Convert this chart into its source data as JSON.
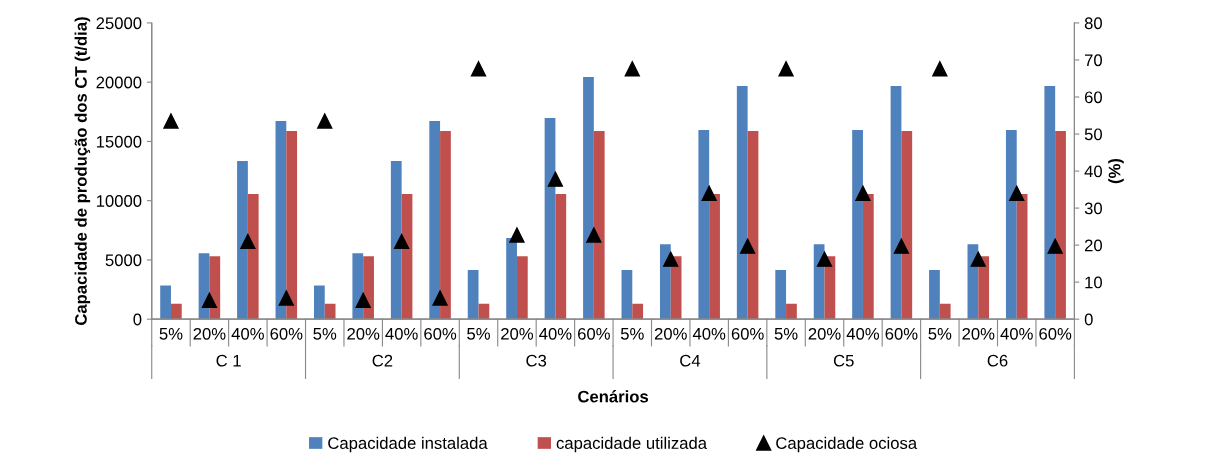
{
  "chart_data": {
    "type": "bar",
    "xlabel": "Cenários",
    "ylabel": "Capacidade de produção dos CT (t/dia)",
    "y2label": "(%)",
    "categories": [
      "5%",
      "20%",
      "40%",
      "60%",
      "5%",
      "20%",
      "40%",
      "60%",
      "5%",
      "20%",
      "40%",
      "60%",
      "5%",
      "20%",
      "40%",
      "60%",
      "5%",
      "20%",
      "40%",
      "60%",
      "5%",
      "20%",
      "40%",
      "60%"
    ],
    "annotations": [
      "C 1",
      "C2",
      "C3",
      "C4",
      "C5",
      "C6"
    ],
    "series": [
      {
        "name": "Capacidade instalada",
        "color": "#4f81bd",
        "values": [
          2850,
          5570,
          13340,
          16720,
          2850,
          5570,
          13340,
          16720,
          4140,
          6840,
          16980,
          20440,
          4140,
          6330,
          15960,
          19680,
          4140,
          6330,
          15960,
          19680,
          4140,
          6330,
          15960,
          19680
        ]
      },
      {
        "name": "capacidade utilizada",
        "color": "#c0504d",
        "values": [
          1300,
          5300,
          10560,
          15880,
          1300,
          5300,
          10560,
          15880,
          1300,
          5300,
          10560,
          15880,
          1300,
          5300,
          10560,
          15880,
          1300,
          5300,
          10560,
          15880,
          1300,
          5300,
          10560,
          15880
        ]
      },
      {
        "name": "Capacidade ociosa",
        "color": "#000000",
        "type": "scatter",
        "axis": "y2",
        "marker": "triangle",
        "values": [
          53.5,
          5.1,
          21,
          5.7,
          53.5,
          5.1,
          21,
          5.7,
          67.6,
          22.7,
          37.8,
          22.7,
          67.6,
          16.2,
          34,
          19.7,
          67.6,
          16.2,
          34,
          19.7,
          67.6,
          16.2,
          34,
          19.7
        ]
      }
    ],
    "ylim": [
      0,
      25000
    ],
    "yticks": [
      0,
      5000,
      10000,
      15000,
      20000,
      25000
    ],
    "y2lim": [
      0,
      80
    ],
    "y2ticks": [
      0,
      10,
      20,
      30,
      40,
      50,
      60,
      70,
      80
    ],
    "grid": false,
    "legend": "bottom"
  }
}
